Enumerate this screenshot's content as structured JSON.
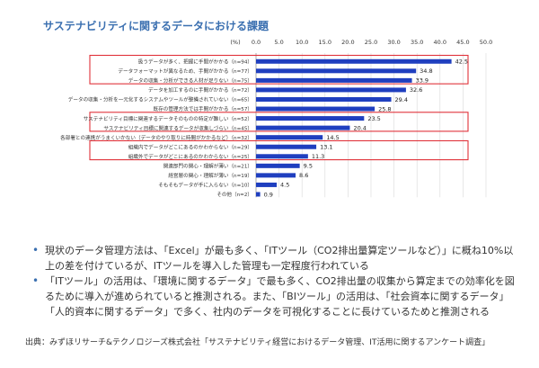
{
  "chart_data": {
    "type": "bar",
    "orientation": "horizontal",
    "title": "サステナビリティに関するデータにおける課題",
    "unit_label": "(%)",
    "xlim": [
      0,
      50
    ],
    "ticks": [
      "0.0",
      "5.0",
      "10.0",
      "15.0",
      "20.0",
      "25.0",
      "30.0",
      "35.0",
      "40.0",
      "45.0",
      "50.0"
    ],
    "tick_values": [
      0,
      5,
      10,
      15,
      20,
      25,
      30,
      35,
      40,
      45,
      50
    ],
    "categories": [
      "扱うデータが多く、把握に手間がかかる（n=94）",
      "データフォーマットが異なるため、手間がかかる（n=77）",
      "データの収集・分析ができる人材が足りない（n=75）",
      "データを加工するのに手間がかかる（n=72）",
      "データの収集・分析を一元化するシステムやツールが整備されていない（n=65）",
      "既存の管理方法では手間がかかる（n=57）",
      "サステナビリティ目標に関連するデータそのものの特定が難しい（n=52）",
      "サステナビリティ目標に関連するデータが収集しづらい（n=45）",
      "各部署との連携がうまくいかない（データのやり取りに時間がかかるなど）（n=32）",
      "組織内でデータがどこにあるのかわからない（n=29）",
      "組織外でデータがどこにあるのかわからない（n=25）",
      "関連部門の関心・理解が薄い（n=21）",
      "経営層の関心・理解が薄い（n=19）",
      "そもそもデータが手に入らない（n=10）",
      "その他（n=2）"
    ],
    "values": [
      42.5,
      34.8,
      33.9,
      32.6,
      29.4,
      25.8,
      23.5,
      20.4,
      14.5,
      13.1,
      11.3,
      9.5,
      8.6,
      4.5,
      0.9
    ],
    "value_labels": [
      "42.5",
      "34.8",
      "33.9",
      "32.6",
      "29.4",
      "25.8",
      "23.5",
      "20.4",
      "14.5",
      "13.1",
      "11.3",
      "9.5",
      "8.6",
      "4.5",
      "0.9"
    ],
    "highlight_groups": [
      [
        0,
        2
      ],
      [
        6,
        7
      ],
      [
        9,
        10
      ]
    ],
    "bar_color": "#1f3fbf",
    "highlight_color": "#e0323a"
  },
  "bullets": [
    "現状のデータ管理方法は、「Excel」が最も多く、「ITツール（CO2排出量算定ツールなど）」に概ね10%以上の差を付けているが、ITツールを導入した管理も一定程度行われている",
    "「ITツール」の活用は、「環境に関するデータ」で最も多く、CO2排出量の収集から算定までの効率化を図るために導入が進められていると推測される。また、「BIツール」の活用は、「社会資本に関するデータ」「人的資本に関するデータ」で多く、社内のデータを可視化することに長けているためと推測される"
  ],
  "source": "出典：みずほリサーチ&テクノロジーズ株式会社「サステナビリティ経営におけるデータ管理、IT活用に関するアンケート調査」"
}
